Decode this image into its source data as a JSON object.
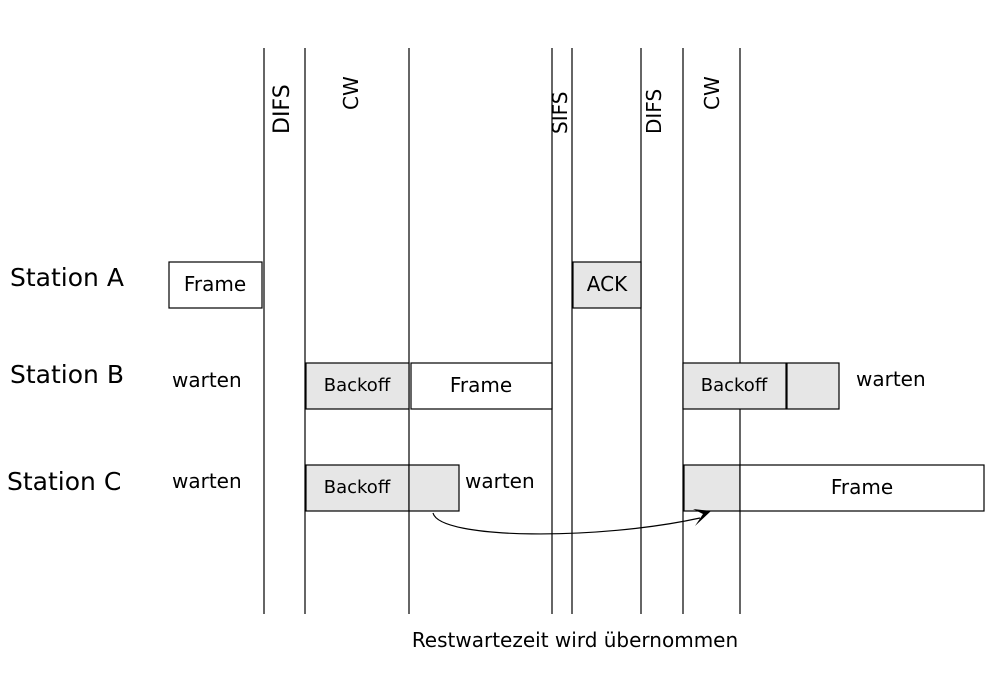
{
  "colors": {
    "line": "#000000",
    "box_white": "#ffffff",
    "box_gray": "#e6e6e6"
  },
  "phases": {
    "difs_1": "DIFS",
    "cw_1": "CW",
    "sifs": "SIFS",
    "difs_2": "DIFS",
    "cw_2": "CW"
  },
  "stations": {
    "a": {
      "label": "Station A",
      "frame": "Frame",
      "ack": "ACK"
    },
    "b": {
      "label": "Station B",
      "wait_1": "warten",
      "backoff": "Backoff",
      "frame": "Frame",
      "backoff_2": "Backoff",
      "wait_2": "warten"
    },
    "c": {
      "label": "Station C",
      "wait_1": "warten",
      "backoff": "Backoff",
      "wait_2": "warten",
      "frame": "Frame"
    }
  },
  "caption": "Restwartezeit wird übernommen"
}
